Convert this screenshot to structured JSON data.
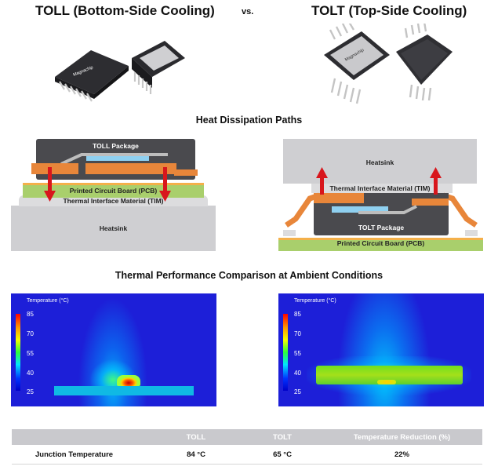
{
  "header": {
    "left_title": "TOLL (Bottom-Side Cooling)",
    "vs": "vs.",
    "right_title": "TOLT (Top-Side Cooling)",
    "chip_brand": "Magnachip"
  },
  "paths": {
    "title": "Heat Dissipation Paths",
    "toll": {
      "package": "TOLL Package",
      "pcb": "Printed Circuit Board (PCB)",
      "tim": "Thermal Interface Material (TIM)",
      "heatsink": "Heatsink"
    },
    "tolt": {
      "heatsink": "Heatsink",
      "tim": "Thermal Interface Material (TIM)",
      "package": "TOLT Package",
      "pcb": "Printed Circuit Board (PCB)"
    }
  },
  "thermal": {
    "title": "Thermal Performance Comparison at Ambient Conditions",
    "legend_title": "Temperature (°C)",
    "scale_ticks": [
      "85",
      "70",
      "55",
      "40",
      "25"
    ]
  },
  "table": {
    "headers": [
      "",
      "TOLL",
      "TOLT",
      "Temperature Reduction (%)"
    ],
    "rows": [
      [
        "Junction Temperature",
        "84 °C",
        "65 °C",
        "22%"
      ]
    ]
  },
  "colors": {
    "copper": "#e8863a",
    "pcb_green": "#a9cf6c",
    "package_dark": "#4a4a4e",
    "heatsink_gray": "#cfcfd2",
    "arrow_red": "#d8161c",
    "heat_bg_blue": "#1d1fd8"
  }
}
